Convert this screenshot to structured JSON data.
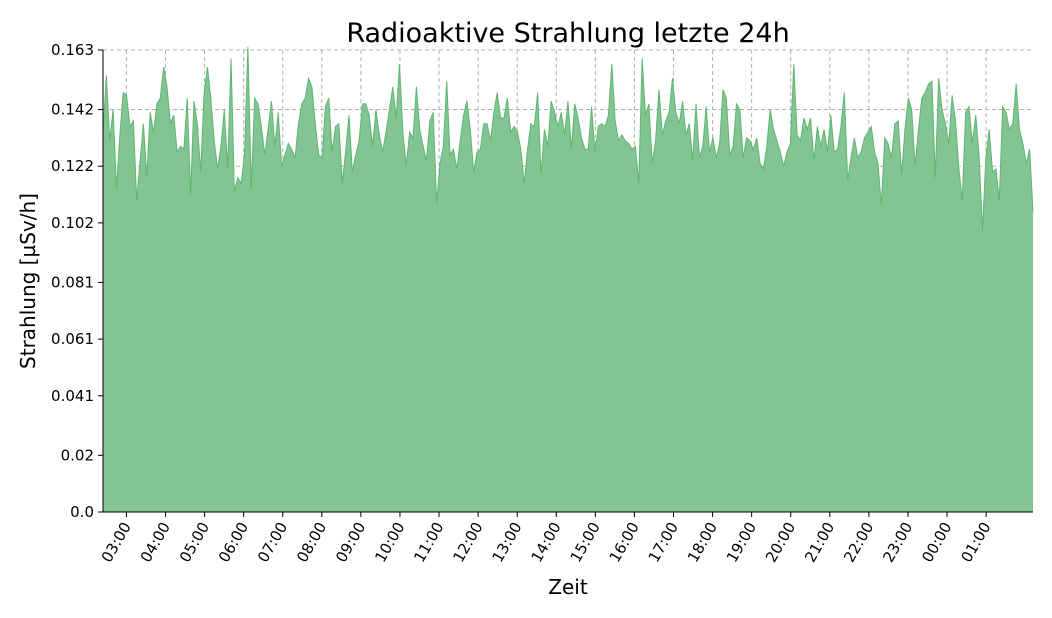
{
  "chart_data": {
    "type": "area",
    "title": "Radioaktive Strahlung letzte 24h",
    "xlabel": "Zeit",
    "ylabel": "Strahlung [µSv/h]",
    "ylim": [
      0,
      0.163
    ],
    "yticks": [
      0.0,
      0.02,
      0.041,
      0.061,
      0.081,
      0.102,
      0.122,
      0.142,
      0.163
    ],
    "ytick_labels": [
      "0.0",
      "0.02",
      "0.041",
      "0.061",
      "0.081",
      "0.102",
      "0.122",
      "0.142",
      "0.163"
    ],
    "xlim": [
      "02:24",
      "02:12"
    ],
    "xticks": [
      "03:00",
      "04:00",
      "05:00",
      "06:00",
      "07:00",
      "08:00",
      "09:00",
      "10:00",
      "11:00",
      "12:00",
      "13:00",
      "14:00",
      "15:00",
      "16:00",
      "17:00",
      "18:00",
      "19:00",
      "20:00",
      "21:00",
      "22:00",
      "23:00",
      "00:00",
      "01:00"
    ],
    "grid": true,
    "fill_color": "#82c592",
    "line_color": "#5fb573",
    "series": [
      {
        "x_start": "02:24",
        "x_end": "02:12",
        "values": [
          0.134,
          0.154,
          0.131,
          0.142,
          0.114,
          0.133,
          0.148,
          0.147,
          0.136,
          0.138,
          0.11,
          0.124,
          0.137,
          0.118,
          0.141,
          0.134,
          0.144,
          0.146,
          0.157,
          0.15,
          0.137,
          0.14,
          0.127,
          0.129,
          0.128,
          0.146,
          0.112,
          0.145,
          0.137,
          0.12,
          0.148,
          0.157,
          0.146,
          0.131,
          0.121,
          0.129,
          0.142,
          0.121,
          0.16,
          0.113,
          0.118,
          0.116,
          0.126,
          0.164,
          0.114,
          0.146,
          0.144,
          0.136,
          0.126,
          0.135,
          0.145,
          0.129,
          0.141,
          0.122,
          0.126,
          0.13,
          0.128,
          0.125,
          0.137,
          0.144,
          0.146,
          0.153,
          0.15,
          0.137,
          0.126,
          0.125,
          0.143,
          0.146,
          0.127,
          0.136,
          0.137,
          0.116,
          0.127,
          0.14,
          0.12,
          0.126,
          0.131,
          0.144,
          0.144,
          0.14,
          0.129,
          0.142,
          0.133,
          0.127,
          0.134,
          0.142,
          0.15,
          0.139,
          0.158,
          0.134,
          0.122,
          0.134,
          0.132,
          0.15,
          0.135,
          0.129,
          0.124,
          0.138,
          0.141,
          0.109,
          0.123,
          0.129,
          0.152,
          0.126,
          0.128,
          0.121,
          0.131,
          0.14,
          0.145,
          0.135,
          0.12,
          0.127,
          0.128,
          0.137,
          0.137,
          0.131,
          0.141,
          0.148,
          0.139,
          0.139,
          0.146,
          0.134,
          0.136,
          0.134,
          0.128,
          0.116,
          0.128,
          0.137,
          0.136,
          0.148,
          0.119,
          0.135,
          0.129,
          0.145,
          0.141,
          0.136,
          0.141,
          0.133,
          0.145,
          0.128,
          0.144,
          0.139,
          0.132,
          0.128,
          0.128,
          0.143,
          0.127,
          0.136,
          0.137,
          0.136,
          0.14,
          0.158,
          0.138,
          0.131,
          0.133,
          0.131,
          0.13,
          0.128,
          0.129,
          0.116,
          0.16,
          0.14,
          0.144,
          0.123,
          0.131,
          0.149,
          0.133,
          0.138,
          0.141,
          0.153,
          0.141,
          0.137,
          0.145,
          0.133,
          0.137,
          0.124,
          0.144,
          0.125,
          0.129,
          0.143,
          0.127,
          0.132,
          0.125,
          0.13,
          0.149,
          0.146,
          0.126,
          0.129,
          0.144,
          0.142,
          0.125,
          0.132,
          0.131,
          0.128,
          0.132,
          0.123,
          0.121,
          0.129,
          0.142,
          0.135,
          0.131,
          0.127,
          0.122,
          0.127,
          0.13,
          0.158,
          0.133,
          0.131,
          0.139,
          0.135,
          0.139,
          0.124,
          0.136,
          0.129,
          0.135,
          0.127,
          0.14,
          0.127,
          0.128,
          0.136,
          0.148,
          0.117,
          0.125,
          0.132,
          0.125,
          0.127,
          0.132,
          0.134,
          0.136,
          0.127,
          0.123,
          0.108,
          0.132,
          0.13,
          0.125,
          0.137,
          0.138,
          0.119,
          0.135,
          0.146,
          0.142,
          0.122,
          0.135,
          0.146,
          0.148,
          0.151,
          0.152,
          0.118,
          0.153,
          0.142,
          0.137,
          0.13,
          0.147,
          0.138,
          0.121,
          0.11,
          0.141,
          0.143,
          0.13,
          0.14,
          0.126,
          0.099,
          0.125,
          0.135,
          0.12,
          0.121,
          0.11,
          0.143,
          0.141,
          0.135,
          0.137,
          0.151,
          0.135,
          0.13,
          0.123,
          0.128,
          0.106
        ]
      }
    ]
  }
}
